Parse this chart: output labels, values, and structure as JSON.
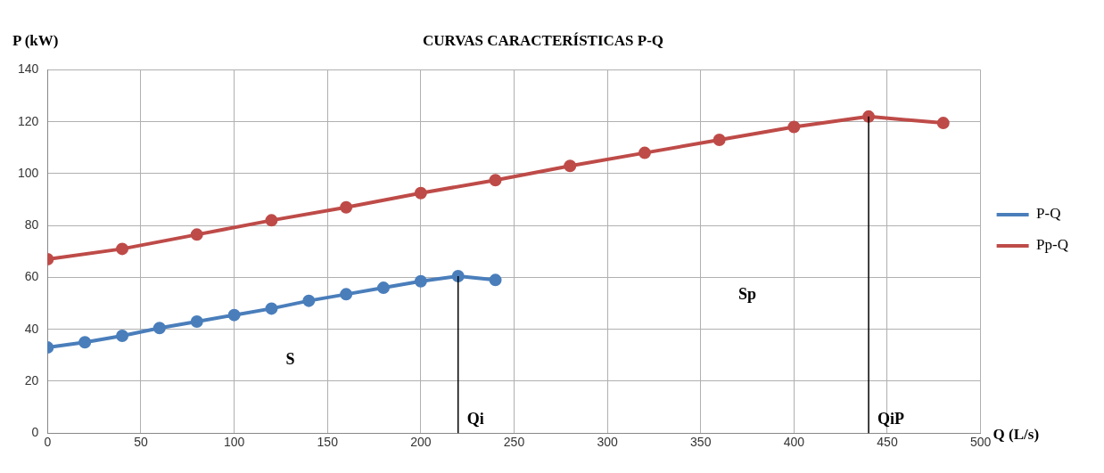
{
  "chart_data": {
    "type": "line",
    "title": "CURVAS CARACTERÍSTICAS P-Q",
    "xlabel": "Q (L/s)",
    "ylabel": "P (kW)",
    "xlim": [
      0,
      500
    ],
    "xticks": [
      0,
      50,
      100,
      150,
      200,
      250,
      300,
      350,
      400,
      450,
      500
    ],
    "ylim": [
      0,
      140
    ],
    "yticks": [
      0,
      20,
      40,
      60,
      80,
      100,
      120,
      140
    ],
    "grid": true,
    "legend": "right",
    "marker": "circle",
    "line_style": "solid",
    "series": [
      {
        "name": "P-Q",
        "color": "#4a7ebb",
        "x": [
          0,
          20,
          40,
          60,
          80,
          100,
          120,
          140,
          160,
          180,
          200,
          220,
          240
        ],
        "values": [
          33,
          35,
          37.5,
          40.5,
          43,
          45.5,
          48,
          51,
          53.5,
          56,
          58.5,
          60.5,
          59
        ]
      },
      {
        "name": "Pp-Q",
        "color": "#be4b48",
        "x": [
          0,
          40,
          80,
          120,
          160,
          200,
          240,
          280,
          320,
          360,
          400,
          440,
          480
        ],
        "values": [
          67,
          71,
          76.5,
          82,
          87,
          92.5,
          97.5,
          103,
          108,
          113,
          118,
          122,
          119.5
        ]
      }
    ],
    "ref_lines": [
      {
        "axis": "x",
        "value": 220,
        "label": "Qi",
        "color": "#000000"
      },
      {
        "axis": "x",
        "value": 440,
        "label": "QiP",
        "color": "#000000"
      }
    ],
    "annotations": [
      "S",
      "Sp"
    ]
  }
}
